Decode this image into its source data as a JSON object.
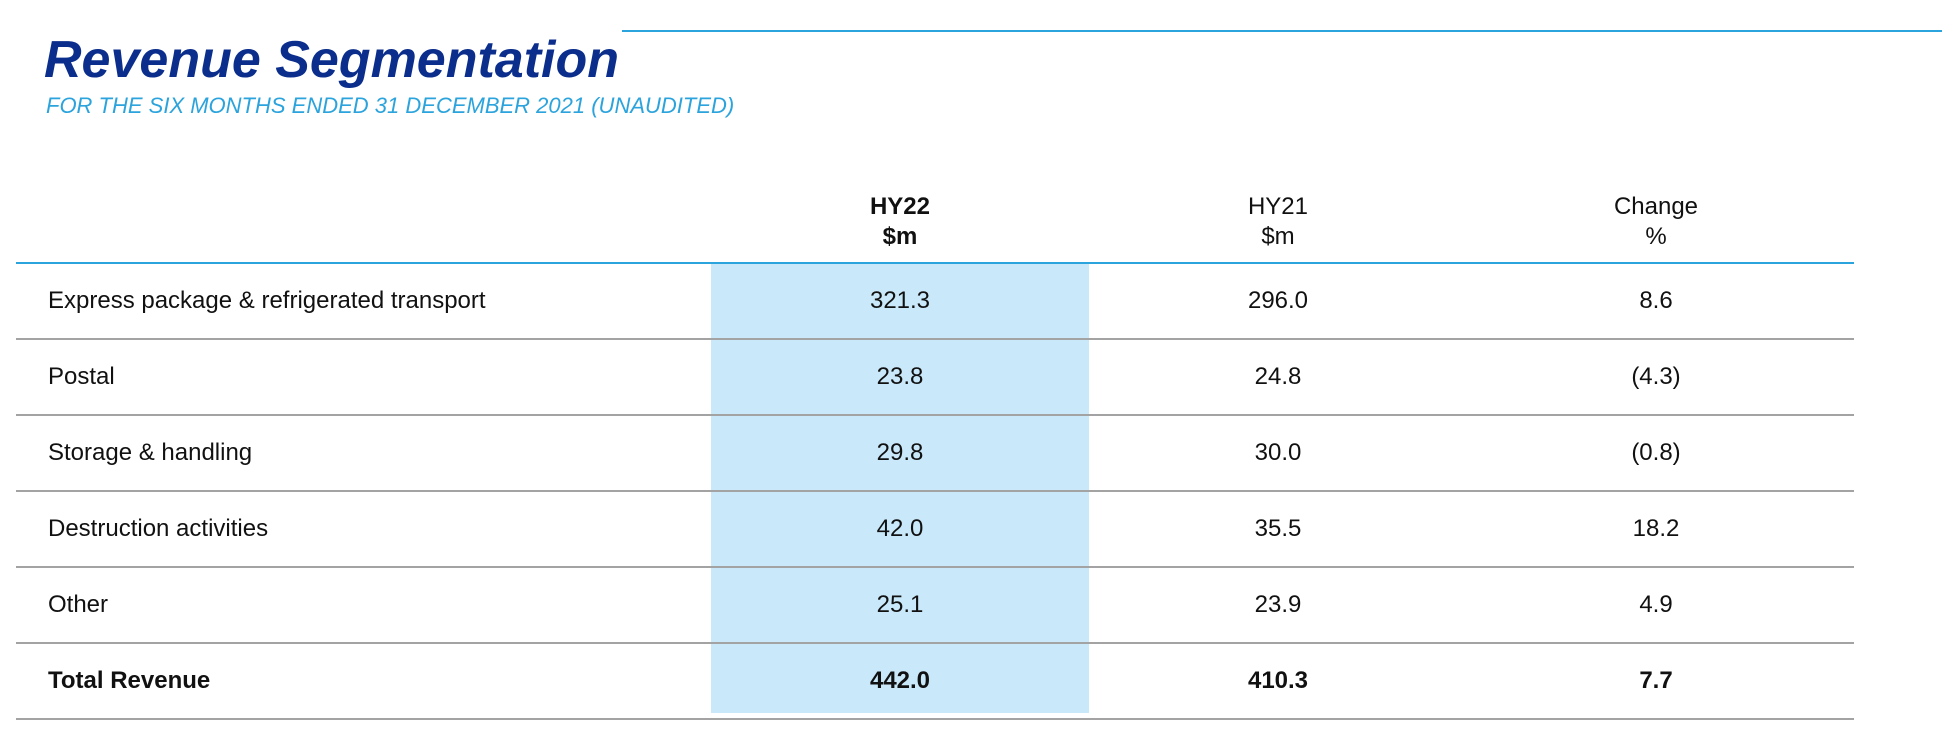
{
  "title": "Revenue Segmentation",
  "subtitle": "FOR THE SIX MONTHS ENDED 31 DECEMBER 2021 (UNAUDITED)",
  "columns": [
    {
      "line1": "HY22",
      "line2": "$m",
      "highlight": true
    },
    {
      "line1": "HY21",
      "line2": "$m",
      "highlight": false
    },
    {
      "line1": "Change",
      "line2": "%",
      "highlight": false
    }
  ],
  "rows": [
    {
      "label": "Express package & refrigerated transport",
      "hy22": "321.3",
      "hy21": "296.0",
      "change": "8.6"
    },
    {
      "label": "Postal",
      "hy22": "23.8",
      "hy21": "24.8",
      "change": "(4.3)"
    },
    {
      "label": "Storage & handling",
      "hy22": "29.8",
      "hy21": "30.0",
      "change": "(0.8)"
    },
    {
      "label": "Destruction activities",
      "hy22": "42.0",
      "hy21": "35.5",
      "change": "18.2"
    },
    {
      "label": "Other",
      "hy22": "25.1",
      "hy21": "23.9",
      "change": "4.9"
    },
    {
      "label": "Total Revenue",
      "hy22": "442.0",
      "hy21": "410.3",
      "change": "7.7",
      "bold": true
    }
  ],
  "colors": {
    "title": "#0b2e8c",
    "accent": "#2ba3dc",
    "highlight": "#c9e8f9",
    "rule": "#a3a3a3"
  }
}
